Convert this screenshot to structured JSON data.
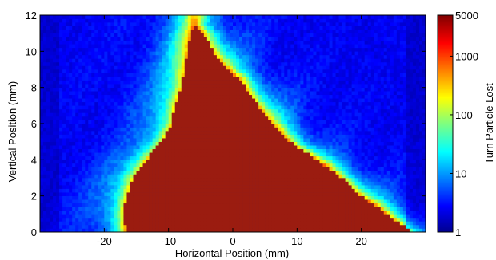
{
  "chart_data": {
    "type": "heatmap",
    "xlabel": "Horizontal Position (mm)",
    "ylabel": "Vertical Position (mm)",
    "xlim": [
      -30,
      30
    ],
    "ylim": [
      0,
      12
    ],
    "x_ticks": [
      -20,
      -10,
      0,
      10,
      20
    ],
    "y_ticks": [
      0,
      2,
      4,
      6,
      8,
      10,
      12
    ],
    "colorbar": {
      "label": "Turn Particle Lost",
      "scale": "log",
      "range": [
        1,
        5000
      ],
      "ticks": [
        1,
        10,
        100,
        1000,
        5000
      ],
      "colormap": "jet"
    },
    "stable_region_boundary": {
      "description_units": "mm",
      "left_edge": [
        [
          -16.5,
          0
        ],
        [
          -17,
          1
        ],
        [
          -16.5,
          2
        ],
        [
          -15.5,
          3
        ],
        [
          -13.5,
          4
        ],
        [
          -11,
          5
        ],
        [
          -9.5,
          6
        ],
        [
          -9,
          7
        ],
        [
          -8,
          8
        ],
        [
          -7.5,
          9
        ],
        [
          -7,
          10
        ],
        [
          -6.5,
          11
        ],
        [
          -6,
          11.5
        ]
      ],
      "right_edge": [
        [
          -6,
          11.5
        ],
        [
          -4.5,
          11
        ],
        [
          -3,
          10
        ],
        [
          -1,
          9
        ],
        [
          1,
          8.5
        ],
        [
          3,
          7.5
        ],
        [
          6,
          6
        ],
        [
          9,
          5
        ],
        [
          13,
          4
        ],
        [
          17,
          3
        ],
        [
          20,
          2
        ],
        [
          24,
          1
        ],
        [
          28,
          0
        ]
      ]
    }
  }
}
